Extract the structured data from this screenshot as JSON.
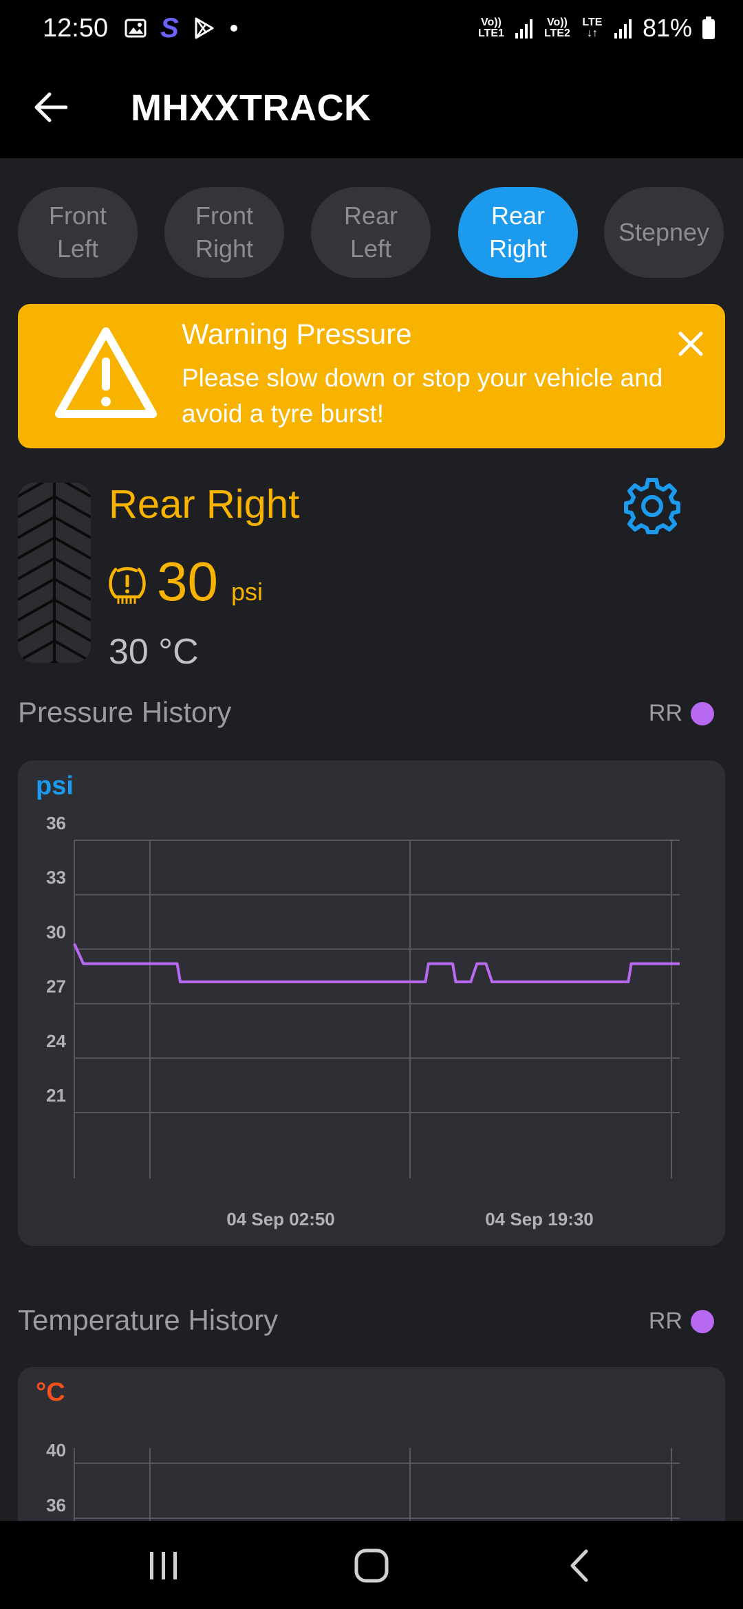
{
  "status_bar": {
    "time": "12:50",
    "net1": "Vo)) LTE1",
    "net2": "Vo)) LTE2",
    "net2_type": "LTE",
    "battery": "81%"
  },
  "app_bar": {
    "title": "MHXXTRACK"
  },
  "tabs": [
    {
      "line1": "Front",
      "line2": "Left",
      "active": false
    },
    {
      "line1": "Front",
      "line2": "Right",
      "active": false
    },
    {
      "line1": "Rear",
      "line2": "Left",
      "active": false
    },
    {
      "line1": "Rear",
      "line2": "Right",
      "active": true
    },
    {
      "line1": "Stepney",
      "line2": "",
      "active": false
    }
  ],
  "warning": {
    "title": "Warning Pressure",
    "message": "Please slow down or stop your vehicle and avoid a tyre burst!"
  },
  "tyre": {
    "name": "Rear Right",
    "pressure": "30",
    "pressure_unit": "psi",
    "temperature": "30 °C"
  },
  "pressure_history": {
    "title": "Pressure History",
    "legend": "RR",
    "unit": "psi",
    "unit_color": "#1b9aee",
    "line_color": "#b869f2"
  },
  "temperature_history": {
    "title": "Temperature History",
    "legend": "RR",
    "unit": "°C",
    "unit_color": "#f4511e"
  },
  "chart_data": [
    {
      "type": "line",
      "ylabel": "psi",
      "ylim": [
        21,
        36
      ],
      "yticks": [
        "36",
        "33",
        "30",
        "27",
        "24",
        "21"
      ],
      "xticks": [
        "04 Sep 02:50",
        "04 Sep 19:30"
      ],
      "grid": true,
      "series": [
        {
          "name": "RR",
          "color": "#b869f2",
          "x": [
            0,
            0.015,
            0.17,
            0.175,
            0.58,
            0.585,
            0.625,
            0.63,
            0.655,
            0.665,
            0.68,
            0.69,
            0.915,
            0.92,
            1.0
          ],
          "values": [
            30.3,
            29.2,
            29.2,
            28.2,
            28.2,
            29.2,
            29.2,
            28.2,
            28.2,
            29.2,
            29.2,
            28.2,
            28.2,
            29.2,
            29.2
          ]
        }
      ]
    },
    {
      "type": "line",
      "ylabel": "°C",
      "ylim": [
        36,
        40
      ],
      "yticks": [
        "40",
        "36"
      ],
      "grid": true,
      "series": []
    }
  ]
}
